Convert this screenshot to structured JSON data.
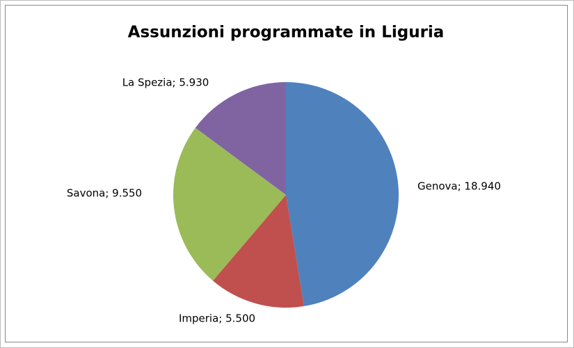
{
  "chart_data": {
    "type": "pie",
    "title": "Assunzioni programmate in Liguria",
    "values": [
      18940,
      5500,
      9550,
      5930
    ],
    "value_labels": [
      "Genova; 18.940",
      "Imperia; 5.500",
      "Savona; 9.550",
      "La Spezia; 5.930"
    ],
    "colors": [
      "#4f81bd",
      "#c0504d",
      "#9bbb59",
      "#8064a2"
    ]
  }
}
